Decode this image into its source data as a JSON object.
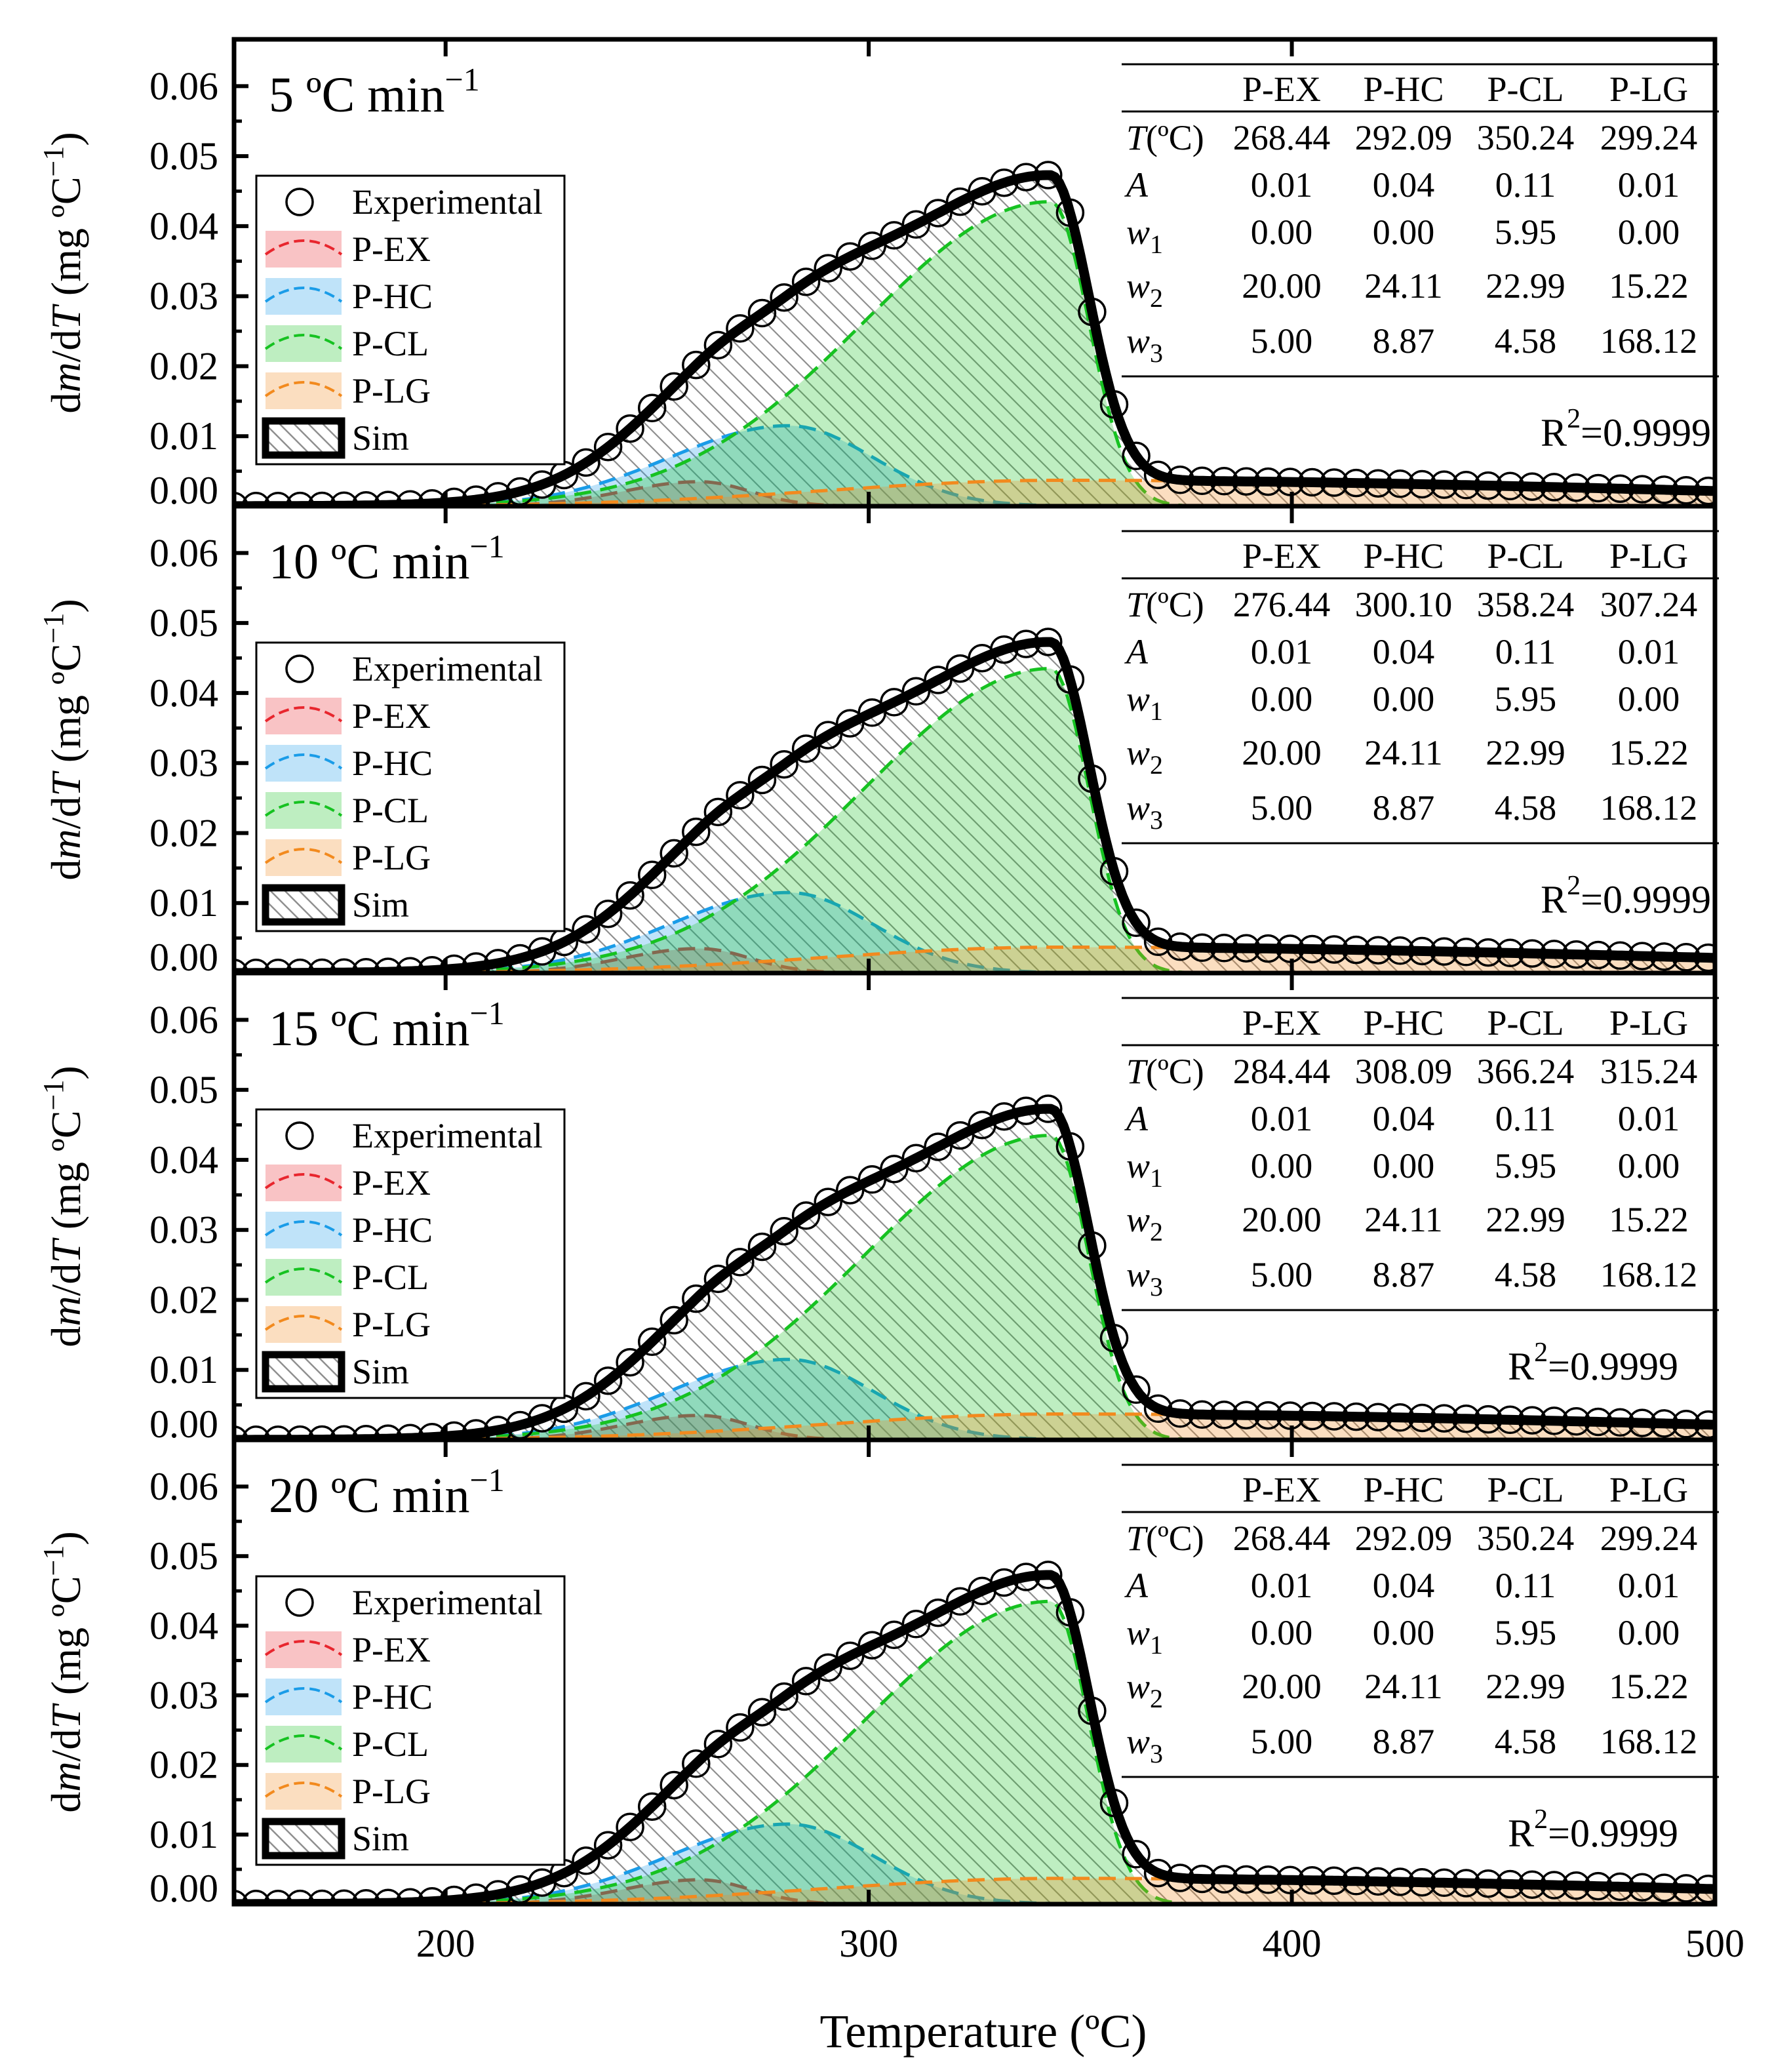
{
  "figure": {
    "xlabel": "Temperature (ºC)",
    "ylabel_parts": [
      "d",
      "m",
      "/d",
      "T",
      " (mg ºC",
      "−1",
      ")"
    ],
    "series_names": [
      "Experimental",
      "P-EX",
      "P-HC",
      "P-CL",
      "P-LG",
      "Sim"
    ],
    "param_symbols": [
      "T",
      "A",
      "w",
      "w",
      "w"
    ],
    "param_units": [
      "(ºC)",
      "",
      "",
      "",
      ""
    ],
    "param_subscripts": [
      "",
      "",
      "1",
      "2",
      "3"
    ],
    "colors": {
      "P-EX": "#e8262e",
      "P-HC": "#1a9ce8",
      "P-CL": "#16c221",
      "P-LG": "#f28a1e",
      "Sim": "#000000"
    }
  },
  "chart_data": [
    {
      "type": "line",
      "title_number": "5",
      "title_unit": " ºC min",
      "title_exp": "−1",
      "xlim": [
        150,
        500
      ],
      "ylim": [
        0,
        0.065
      ],
      "xticks": [
        "200",
        "300",
        "400",
        "500"
      ],
      "yticks": [
        "0.00",
        "0.01",
        "0.02",
        "0.03",
        "0.04",
        "0.05",
        "0.06"
      ],
      "r2_label": "R",
      "r2_sup": "2",
      "r2_value": "=0.9999",
      "table_columns": [
        "P-EX",
        "P-HC",
        "P-CL",
        "P-LG"
      ],
      "table_rows": [
        [
          "268.44",
          "292.09",
          "350.24",
          "299.24"
        ],
        [
          "0.01",
          "0.04",
          "0.11",
          "0.01"
        ],
        [
          "0.00",
          "0.00",
          "5.95",
          "0.00"
        ],
        [
          "20.00",
          "24.11",
          "22.99",
          "15.22"
        ],
        [
          "5.00",
          "8.87",
          "4.58",
          "168.12"
        ]
      ],
      "components": [
        {
          "name": "P-EX",
          "peak_x": 260,
          "peak_y": 0.0035,
          "width_left": 18,
          "width_right": 12
        },
        {
          "name": "P-HC",
          "peak_x": 281,
          "peak_y": 0.0115,
          "width_left": 28,
          "width_right": 20
        },
        {
          "name": "P-CL",
          "peak_x": 343,
          "peak_y": 0.0435,
          "width_left": 44,
          "width_right": 9
        },
        {
          "name": "P-LG",
          "peak_x": 345,
          "peak_y": 0.0037,
          "width_left": 55,
          "width_right": 150
        }
      ]
    },
    {
      "type": "line",
      "title_number": "10",
      "title_unit": " ºC min",
      "title_exp": "−1",
      "xlim": [
        150,
        500
      ],
      "ylim": [
        0,
        0.065
      ],
      "xticks": [
        "200",
        "300",
        "400",
        "500"
      ],
      "yticks": [
        "0.00",
        "0.01",
        "0.02",
        "0.03",
        "0.04",
        "0.05",
        "0.06"
      ],
      "r2_label": "R",
      "r2_sup": "2",
      "r2_value": "=0.9999",
      "table_columns": [
        "P-EX",
        "P-HC",
        "P-CL",
        "P-LG"
      ],
      "table_rows": [
        [
          "276.44",
          "300.10",
          "358.24",
          "307.24"
        ],
        [
          "0.01",
          "0.04",
          "0.11",
          "0.01"
        ],
        [
          "0.00",
          "0.00",
          "5.95",
          "0.00"
        ],
        [
          "20.00",
          "24.11",
          "22.99",
          "15.22"
        ],
        [
          "5.00",
          "8.87",
          "4.58",
          "168.12"
        ]
      ],
      "components": [
        {
          "name": "P-EX",
          "peak_x": 260,
          "peak_y": 0.0035,
          "width_left": 18,
          "width_right": 12
        },
        {
          "name": "P-HC",
          "peak_x": 281,
          "peak_y": 0.0115,
          "width_left": 28,
          "width_right": 20
        },
        {
          "name": "P-CL",
          "peak_x": 343,
          "peak_y": 0.0435,
          "width_left": 44,
          "width_right": 9
        },
        {
          "name": "P-LG",
          "peak_x": 345,
          "peak_y": 0.0037,
          "width_left": 55,
          "width_right": 150
        }
      ]
    },
    {
      "type": "line",
      "title_number": "15",
      "title_unit": " ºC min",
      "title_exp": "−1",
      "xlim": [
        150,
        500
      ],
      "ylim": [
        0,
        0.065
      ],
      "xticks": [
        "200",
        "300",
        "400",
        "500"
      ],
      "yticks": [
        "0.00",
        "0.01",
        "0.02",
        "0.03",
        "0.04",
        "0.05",
        "0.06"
      ],
      "r2_label": "R",
      "r2_sup": "2",
      "r2_value": "=0.9999",
      "table_columns": [
        "P-EX",
        "P-HC",
        "P-CL",
        "P-LG"
      ],
      "table_rows": [
        [
          "284.44",
          "308.09",
          "366.24",
          "315.24"
        ],
        [
          "0.01",
          "0.04",
          "0.11",
          "0.01"
        ],
        [
          "0.00",
          "0.00",
          "5.95",
          "0.00"
        ],
        [
          "20.00",
          "24.11",
          "22.99",
          "15.22"
        ],
        [
          "5.00",
          "8.87",
          "4.58",
          "168.12"
        ]
      ],
      "components": [
        {
          "name": "P-EX",
          "peak_x": 260,
          "peak_y": 0.0035,
          "width_left": 18,
          "width_right": 12
        },
        {
          "name": "P-HC",
          "peak_x": 281,
          "peak_y": 0.0115,
          "width_left": 28,
          "width_right": 20
        },
        {
          "name": "P-CL",
          "peak_x": 343,
          "peak_y": 0.0435,
          "width_left": 44,
          "width_right": 9
        },
        {
          "name": "P-LG",
          "peak_x": 345,
          "peak_y": 0.0037,
          "width_left": 55,
          "width_right": 150
        }
      ]
    },
    {
      "type": "line",
      "title_number": "20",
      "title_unit": " ºC min",
      "title_exp": "−1",
      "xlim": [
        150,
        500
      ],
      "ylim": [
        0,
        0.065
      ],
      "xticks": [
        "200",
        "300",
        "400",
        "500"
      ],
      "yticks": [
        "0.00",
        "0.01",
        "0.02",
        "0.03",
        "0.04",
        "0.05",
        "0.06"
      ],
      "r2_label": "R",
      "r2_sup": "2",
      "r2_value": "=0.9999",
      "table_columns": [
        "P-EX",
        "P-HC",
        "P-CL",
        "P-LG"
      ],
      "table_rows": [
        [
          "268.44",
          "292.09",
          "350.24",
          "299.24"
        ],
        [
          "0.01",
          "0.04",
          "0.11",
          "0.01"
        ],
        [
          "0.00",
          "0.00",
          "5.95",
          "0.00"
        ],
        [
          "20.00",
          "24.11",
          "22.99",
          "15.22"
        ],
        [
          "5.00",
          "8.87",
          "4.58",
          "168.12"
        ]
      ],
      "components": [
        {
          "name": "P-EX",
          "peak_x": 260,
          "peak_y": 0.0035,
          "width_left": 18,
          "width_right": 12
        },
        {
          "name": "P-HC",
          "peak_x": 281,
          "peak_y": 0.0115,
          "width_left": 28,
          "width_right": 20
        },
        {
          "name": "P-CL",
          "peak_x": 343,
          "peak_y": 0.0435,
          "width_left": 44,
          "width_right": 9
        },
        {
          "name": "P-LG",
          "peak_x": 345,
          "peak_y": 0.0037,
          "width_left": 55,
          "width_right": 150
        }
      ]
    }
  ]
}
